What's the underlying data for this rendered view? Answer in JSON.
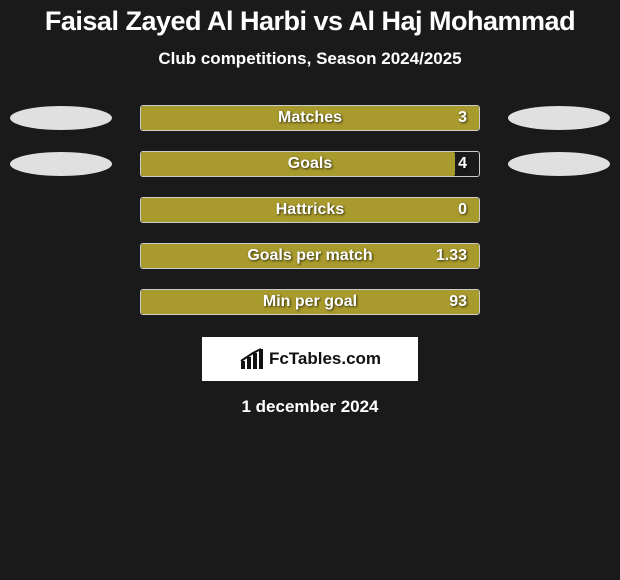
{
  "title": {
    "text": "Faisal Zayed Al Harbi vs Al Haj Mohammad",
    "color": "#ffffff",
    "fontsize": 27
  },
  "subtitle": {
    "text": "Club competitions, Season 2024/2025",
    "color": "#ffffff",
    "fontsize": 17
  },
  "chart": {
    "type": "bar-comparison",
    "bar_border_color": "#cccccc",
    "fill_color": "#a89a2c",
    "ellipse_color": "#e0e0e0",
    "label_color": "#ffffff",
    "value_color": "#ffffff",
    "label_fontsize": 16,
    "value_fontsize": 16,
    "rows": [
      {
        "label": "Matches",
        "value": "3",
        "fill_pct": 100,
        "show_ellipses": true
      },
      {
        "label": "Goals",
        "value": "4",
        "fill_pct": 93,
        "show_ellipses": true
      },
      {
        "label": "Hattricks",
        "value": "0",
        "fill_pct": 100,
        "show_ellipses": false
      },
      {
        "label": "Goals per match",
        "value": "1.33",
        "fill_pct": 100,
        "show_ellipses": false
      },
      {
        "label": "Min per goal",
        "value": "93",
        "fill_pct": 100,
        "show_ellipses": false
      }
    ]
  },
  "brand": {
    "background": "#ffffff",
    "icon_name": "bar-chart-icon",
    "text": "FcTables.com",
    "text_color": "#111111",
    "fontsize": 17
  },
  "date": {
    "text": "1 december 2024",
    "color": "#ffffff",
    "fontsize": 17
  },
  "page": {
    "background": "#1a1a1a"
  }
}
